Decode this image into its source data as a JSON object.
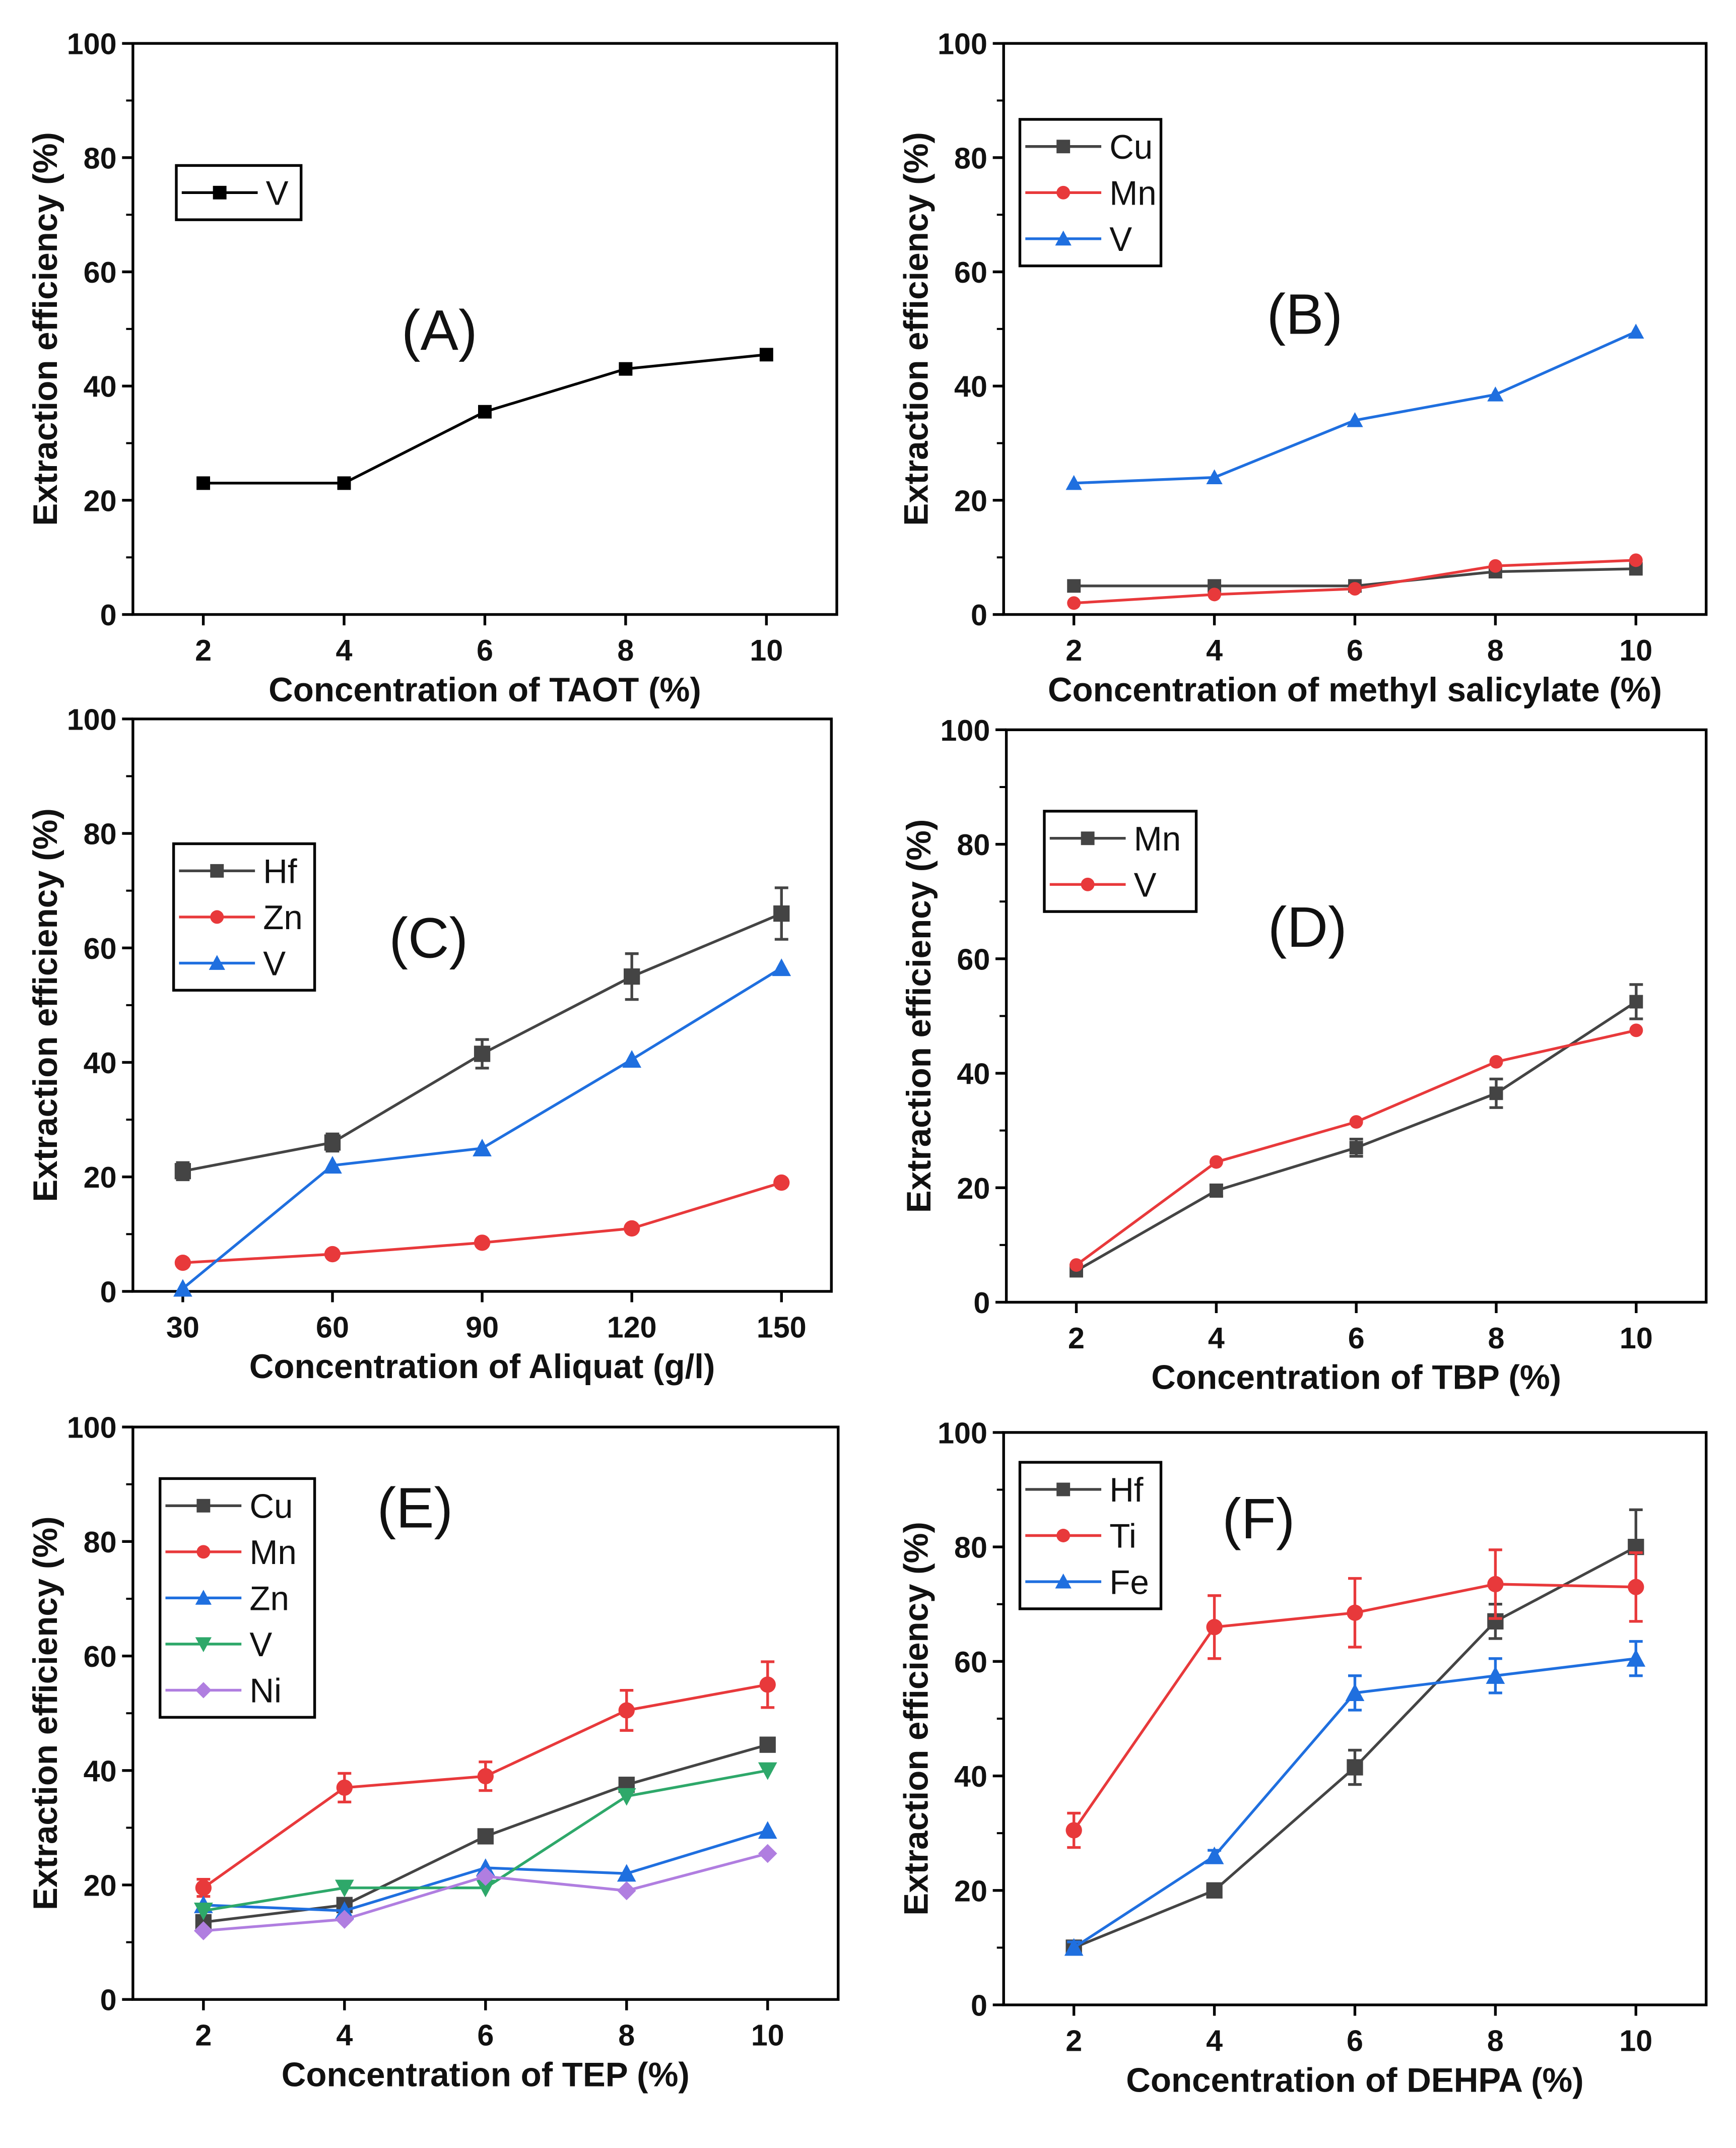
{
  "chart_data": [
    {
      "type": "line",
      "panel_label": "(A)",
      "xlabel": "Concentration of TAOT (%)",
      "ylabel": "Extraction efficiency (%)",
      "x": [
        2,
        4,
        6,
        8,
        10
      ],
      "xlim": [
        1,
        11
      ],
      "ylim": [
        0,
        100
      ],
      "xticks": [
        2,
        4,
        6,
        8,
        10
      ],
      "yticks": [
        0,
        20,
        40,
        60,
        80,
        100
      ],
      "legend": "top-left",
      "series": [
        {
          "name": "V",
          "color": "#000000",
          "marker": "square",
          "values": [
            23,
            23,
            35.5,
            43,
            45.5
          ]
        }
      ]
    },
    {
      "type": "line",
      "panel_label": "(B)",
      "xlabel": "Concentration of methyl salicylate (%)",
      "ylabel": "Extraction efficiency (%)",
      "x": [
        2,
        4,
        6,
        8,
        10
      ],
      "xlim": [
        1,
        11
      ],
      "ylim": [
        0,
        100
      ],
      "xticks": [
        2,
        4,
        6,
        8,
        10
      ],
      "yticks": [
        0,
        20,
        40,
        60,
        80,
        100
      ],
      "legend": "top-left",
      "series": [
        {
          "name": "Cu",
          "color": "#444444",
          "marker": "square",
          "values": [
            5,
            5,
            5,
            7.5,
            8
          ]
        },
        {
          "name": "Mn",
          "color": "#e8393b",
          "marker": "circle",
          "values": [
            2,
            3.5,
            4.5,
            8.5,
            9.5
          ]
        },
        {
          "name": "V",
          "color": "#1f6fdf",
          "marker": "triangle",
          "values": [
            23,
            24,
            34,
            38.5,
            49.5
          ]
        }
      ]
    },
    {
      "type": "line",
      "panel_label": "(C)",
      "xlabel": "Concentration of Aliquat (g/l)",
      "ylabel": "Extraction efficiency (%)",
      "x": [
        30,
        60,
        90,
        120,
        150
      ],
      "xlim": [
        20,
        160
      ],
      "ylim": [
        0,
        100
      ],
      "xticks": [
        30,
        60,
        90,
        120,
        150
      ],
      "yticks": [
        0,
        20,
        40,
        60,
        80,
        100
      ],
      "legend": "top-left",
      "series": [
        {
          "name": "Hf",
          "color": "#444444",
          "marker": "square",
          "values": [
            21,
            26,
            41.5,
            55,
            66
          ],
          "errors": [
            1.5,
            1.5,
            2.5,
            4,
            4.5
          ]
        },
        {
          "name": "Zn",
          "color": "#e8393b",
          "marker": "circle",
          "values": [
            5,
            6.5,
            8.5,
            11,
            19
          ]
        },
        {
          "name": "V",
          "color": "#1f6fdf",
          "marker": "triangle",
          "values": [
            0.5,
            22,
            25,
            40.5,
            56.5
          ]
        }
      ]
    },
    {
      "type": "line",
      "panel_label": "(D)",
      "xlabel": "Concentration of TBP (%)",
      "ylabel": "Extraction efficiency (%)",
      "x": [
        2,
        4,
        6,
        8,
        10
      ],
      "xlim": [
        1,
        11
      ],
      "ylim": [
        0,
        100
      ],
      "xticks": [
        2,
        4,
        6,
        8,
        10
      ],
      "yticks": [
        0,
        20,
        40,
        60,
        80,
        100
      ],
      "legend": "top-left",
      "series": [
        {
          "name": "Mn",
          "color": "#444444",
          "marker": "square",
          "values": [
            5.5,
            19.5,
            27,
            36.5,
            52.5
          ],
          "errors": [
            0.5,
            1,
            1.5,
            2.5,
            3
          ]
        },
        {
          "name": "V",
          "color": "#e8393b",
          "marker": "circle",
          "values": [
            6.5,
            24.5,
            31.5,
            42,
            47.5
          ]
        }
      ]
    },
    {
      "type": "line",
      "panel_label": "(E)",
      "xlabel": "Concentration of TEP (%)",
      "ylabel": "Extraction efficiency (%)",
      "x": [
        2,
        4,
        6,
        8,
        10
      ],
      "xlim": [
        1,
        11
      ],
      "ylim": [
        0,
        100
      ],
      "xticks": [
        2,
        4,
        6,
        8,
        10
      ],
      "yticks": [
        0,
        20,
        40,
        60,
        80,
        100
      ],
      "legend": "top-left",
      "series": [
        {
          "name": "Cu",
          "color": "#444444",
          "marker": "square",
          "values": [
            13.5,
            16.5,
            28.5,
            37.5,
            44.5
          ]
        },
        {
          "name": "Mn",
          "color": "#e8393b",
          "marker": "circle",
          "values": [
            19.5,
            37,
            39,
            50.5,
            55
          ],
          "errors": [
            1.5,
            2.5,
            2.5,
            3.5,
            4
          ]
        },
        {
          "name": "Zn",
          "color": "#1f6fdf",
          "marker": "triangle",
          "values": [
            16.5,
            15.5,
            23,
            22,
            29.5
          ]
        },
        {
          "name": "V",
          "color": "#2ea86a",
          "marker": "triangle-down",
          "values": [
            15.5,
            19.5,
            19.5,
            35.5,
            40
          ]
        },
        {
          "name": "Ni",
          "color": "#b07ee0",
          "marker": "diamond",
          "values": [
            12,
            14,
            21.5,
            19,
            25.5
          ]
        }
      ]
    },
    {
      "type": "line",
      "panel_label": "(F)",
      "xlabel": "Concentration of DEHPA (%)",
      "ylabel": "Extraction efficiency (%)",
      "x": [
        2,
        4,
        6,
        8,
        10
      ],
      "xlim": [
        1,
        11
      ],
      "ylim": [
        0,
        100
      ],
      "xticks": [
        2,
        4,
        6,
        8,
        10
      ],
      "yticks": [
        0,
        20,
        40,
        60,
        80,
        100
      ],
      "legend": "top-left",
      "series": [
        {
          "name": "Hf",
          "color": "#444444",
          "marker": "square",
          "values": [
            10,
            20,
            41.5,
            67,
            80
          ],
          "errors": [
            0.5,
            0.5,
            3,
            3,
            6.5
          ]
        },
        {
          "name": "Ti",
          "color": "#e8393b",
          "marker": "circle",
          "values": [
            30.5,
            66,
            68.5,
            73.5,
            73
          ],
          "errors": [
            3,
            5.5,
            6,
            6,
            6
          ]
        },
        {
          "name": "Fe",
          "color": "#1f6fdf",
          "marker": "triangle",
          "values": [
            10,
            26,
            54.5,
            57.5,
            60.5
          ],
          "errors": [
            1,
            1,
            3,
            3,
            3
          ]
        }
      ]
    }
  ]
}
